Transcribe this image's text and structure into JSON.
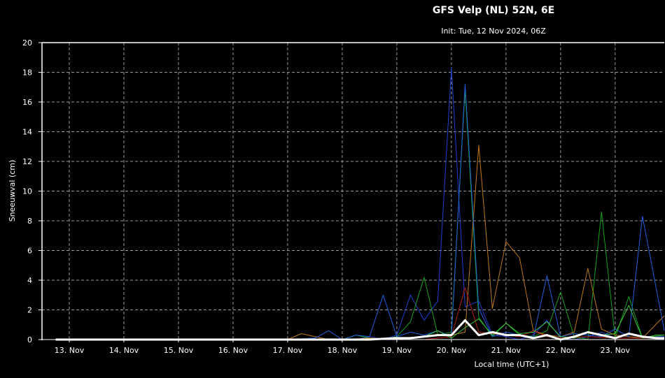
{
  "chart_data": {
    "type": "line",
    "title": "GFS Velp (NL) 52N, 6E",
    "subtitle": "Init: Tue, 12 Nov 2024, 06Z",
    "xlabel": "Local time (UTC+1)",
    "ylabel": "Sneeuwval (cm)",
    "ylim": [
      0,
      20
    ],
    "yticks": [
      0,
      2,
      4,
      6,
      8,
      10,
      12,
      14,
      16,
      18,
      20
    ],
    "xlim": [
      12.5,
      23.9
    ],
    "x_ticks": [
      13,
      14,
      15,
      16,
      17,
      18,
      19,
      20,
      21,
      22,
      23
    ],
    "x_tick_labels": [
      "13. Nov",
      "14. Nov",
      "15. Nov",
      "16. Nov",
      "17. Nov",
      "18. Nov",
      "19. Nov",
      "20. Nov",
      "21. Nov",
      "22. Nov",
      "23. Nov"
    ],
    "grid": true,
    "colors": {
      "background": "#000000",
      "grid": "#9a9a9a",
      "frame": "#ffffff",
      "mean": "#ffffff"
    },
    "series": [
      {
        "color": "#1f3fd0",
        "width": 1,
        "x": [
          12.75,
          17.0,
          17.5,
          18.25,
          18.5,
          18.75,
          19.0,
          19.25,
          19.5,
          19.75,
          20.0,
          20.25,
          20.5,
          20.75,
          21.0,
          21.25,
          21.5,
          21.75,
          22.0,
          22.25,
          22.5,
          22.75,
          23.0,
          23.25,
          23.5,
          23.9
        ],
        "y": [
          0,
          0,
          0,
          0,
          0.2,
          0,
          0.3,
          3.0,
          1.3,
          2.6,
          18.3,
          2.2,
          2.6,
          0.3,
          0.2,
          0,
          0.3,
          1.3,
          0.1,
          0,
          0.2,
          0.5,
          0.1,
          0.4,
          0.2,
          0.2
        ]
      },
      {
        "color": "#12a21a",
        "width": 1,
        "x": [
          12.75,
          18.0,
          18.25,
          18.5,
          18.75,
          19.0,
          19.25,
          19.5,
          19.75,
          20.0,
          20.25,
          20.5,
          20.75,
          21.0,
          21.25,
          21.5,
          21.75,
          22.0,
          22.25,
          22.5,
          22.75,
          23.0,
          23.25,
          23.5,
          23.9
        ],
        "y": [
          0,
          0,
          0.3,
          0.1,
          0,
          0.2,
          1.2,
          4.2,
          0.3,
          0.5,
          16.8,
          1.5,
          0.2,
          1.1,
          0.3,
          0.2,
          0.6,
          3.2,
          0.2,
          0,
          8.6,
          0.1,
          2.9,
          0.1,
          0.3
        ]
      },
      {
        "color": "#c07818",
        "width": 1,
        "x": [
          12.75,
          17.0,
          17.25,
          17.5,
          17.75,
          18.0,
          18.5,
          19.0,
          19.5,
          20.0,
          20.25,
          20.5,
          20.75,
          21.0,
          21.25,
          21.5,
          21.75,
          22.0,
          22.25,
          22.5,
          22.75,
          23.0,
          23.5,
          23.9
        ],
        "y": [
          0,
          0,
          0.4,
          0.2,
          0,
          0,
          0.1,
          0,
          0.2,
          0.3,
          0.5,
          13.1,
          2.1,
          6.6,
          5.5,
          0.6,
          0.3,
          0.2,
          0.5,
          4.8,
          0.7,
          0.3,
          0.1,
          1.6
        ]
      },
      {
        "color": "#1f5fe0",
        "width": 1,
        "x": [
          12.75,
          17.0,
          17.5,
          17.75,
          18.0,
          18.25,
          18.5,
          18.75,
          19.0,
          19.25,
          19.5,
          19.75,
          20.0,
          20.25,
          20.5,
          20.75,
          21.0,
          21.25,
          21.5,
          21.75,
          22.0,
          22.25,
          22.5,
          22.75,
          23.0,
          23.25,
          23.5,
          23.9
        ],
        "y": [
          0,
          0,
          0.1,
          0.6,
          0,
          0.3,
          0.2,
          3.0,
          0.2,
          0.5,
          0.3,
          0.6,
          0.2,
          17.2,
          2.1,
          0.2,
          0.5,
          0.3,
          0.1,
          4.3,
          0.2,
          0.4,
          0.3,
          0.2,
          0.7,
          0.2,
          8.3,
          0.6
        ]
      },
      {
        "color": "#b81810",
        "width": 1,
        "x": [
          12.75,
          19.5,
          19.75,
          20.0,
          20.25,
          20.5,
          20.75,
          21.0,
          21.25,
          21.5,
          21.75,
          22.0,
          22.5,
          23.0,
          23.9
        ],
        "y": [
          0,
          0,
          0.1,
          0.2,
          3.5,
          0.5,
          0.4,
          0.3,
          0.2,
          0.6,
          0.2,
          0.1,
          0.2,
          0.1,
          0.1
        ]
      },
      {
        "color": "#3cc83c",
        "width": 1,
        "x": [
          12.75,
          18.5,
          19.0,
          19.5,
          19.75,
          20.0,
          20.25,
          20.5,
          20.75,
          21.0,
          21.25,
          21.5,
          21.75,
          22.0,
          22.25,
          22.5,
          22.75,
          23.0,
          23.25,
          23.5,
          23.75,
          23.9
        ],
        "y": [
          0,
          0,
          0.1,
          0.2,
          0.6,
          0.1,
          0.8,
          1.4,
          0.3,
          1.1,
          0.4,
          0.5,
          1.2,
          0.2,
          0.1,
          0.5,
          0.3,
          0.4,
          2.3,
          0.1,
          0.3,
          0.3
        ]
      },
      {
        "color": "#ffffff",
        "width": 3,
        "x": [
          12.75,
          18.5,
          18.75,
          19.0,
          19.25,
          19.5,
          19.75,
          20.0,
          20.25,
          20.5,
          20.75,
          21.0,
          21.25,
          21.5,
          21.75,
          22.0,
          22.25,
          22.5,
          22.75,
          23.0,
          23.25,
          23.5,
          23.75,
          23.9
        ],
        "y": [
          0,
          0,
          0.05,
          0.1,
          0.1,
          0.2,
          0.3,
          0.3,
          1.3,
          0.3,
          0.5,
          0.3,
          0.3,
          0.1,
          0.3,
          0.0,
          0.2,
          0.5,
          0.3,
          0.1,
          0.4,
          0.2,
          0.1,
          0.1
        ]
      }
    ]
  }
}
